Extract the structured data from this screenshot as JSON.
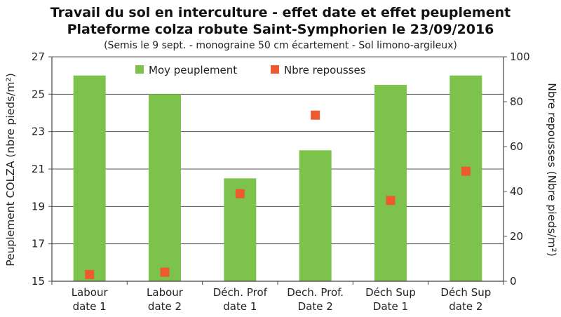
{
  "chart_data": {
    "type": "bar",
    "title_line1": "Travail du sol en interculture - effet date et effet peuplement",
    "title_line2": "Plateforme colza robute Saint-Symphorien le 23/09/2016",
    "subtitle": "(Semis le 9 sept. - monograine 50 cm écartement - Sol limono-argileux)",
    "categories": [
      [
        "Labour",
        "date 1"
      ],
      [
        "Labour",
        "date 2"
      ],
      [
        "Déch. Prof",
        "date 1"
      ],
      [
        "Dech. Prof.",
        "Date 2"
      ],
      [
        "Déch Sup",
        "Date 1"
      ],
      [
        "Déch Sup",
        "date 2"
      ]
    ],
    "series": [
      {
        "name": "Moy peuplement",
        "type": "bar",
        "axis": "left",
        "color": "#7dc24b",
        "values": [
          26.0,
          25.0,
          20.5,
          22.0,
          25.5,
          26.0
        ]
      },
      {
        "name": "Nbre repousses",
        "type": "scatter",
        "axis": "right",
        "color": "#ee5a2f",
        "values": [
          3,
          4,
          39,
          74,
          36,
          49
        ]
      }
    ],
    "ylabel": "Peuplement COLZA (nbre pieds/m²)",
    "y2label": "Nbre repousses (Nbre pieds/m²)",
    "ylim": [
      15,
      27
    ],
    "yticks": [
      "15",
      "17",
      "19",
      "21",
      "23",
      "25",
      "27"
    ],
    "y2lim": [
      0,
      100
    ],
    "y2ticks": [
      "0",
      "20",
      "40",
      "60",
      "80",
      "100"
    ],
    "grid": true,
    "legend_position": "top"
  }
}
